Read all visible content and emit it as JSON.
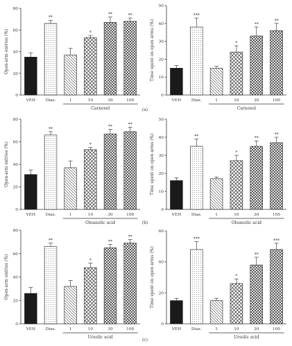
{
  "panel_labels": [
    "(a)",
    "(b)",
    "(c)"
  ],
  "chart_data": [
    {
      "type": "bar",
      "panel": "a",
      "position": "left",
      "categories": [
        "VEH",
        "Diaz.",
        "1",
        "10",
        "30",
        "100"
      ],
      "values": [
        35,
        66,
        37,
        53,
        67,
        68
      ],
      "errors": [
        4,
        3,
        6,
        2,
        5,
        3
      ],
      "significance": [
        "",
        "**",
        "",
        "*",
        "**",
        "**"
      ],
      "ylabel": "Open-arm entries (%)",
      "group_label": "Carnosol",
      "ylim": [
        0,
        80
      ],
      "yticks": [
        0,
        20,
        40,
        60,
        80
      ]
    },
    {
      "type": "bar",
      "panel": "a",
      "position": "right",
      "categories": [
        "VEH",
        "Diaz.",
        "1",
        "10",
        "30",
        "100"
      ],
      "values": [
        15,
        38,
        15,
        24,
        33,
        36
      ],
      "errors": [
        1.5,
        5,
        1,
        3.5,
        5,
        4
      ],
      "significance": [
        "",
        "***",
        "",
        "*",
        "**",
        "**"
      ],
      "ylabel": "Time spent on open arms (%)",
      "group_label": "Carnosol",
      "ylim": [
        0,
        50
      ],
      "yticks": [
        0,
        10,
        20,
        30,
        40,
        50
      ]
    },
    {
      "type": "bar",
      "panel": "b",
      "position": "left",
      "categories": [
        "VEH",
        "Diaz.",
        "1",
        "10",
        "30",
        "100"
      ],
      "values": [
        31,
        66,
        37,
        53,
        67,
        69
      ],
      "errors": [
        4,
        3,
        6,
        2,
        4,
        4
      ],
      "significance": [
        "",
        "**",
        "",
        "*",
        "**",
        "**"
      ],
      "ylabel": "Open-arm entries (%)",
      "group_label": "Oleanolic acid",
      "ylim": [
        0,
        80
      ],
      "yticks": [
        0,
        20,
        40,
        60,
        80
      ]
    },
    {
      "type": "bar",
      "panel": "b",
      "position": "right",
      "categories": [
        "VEH",
        "Diaz.",
        "1",
        "10",
        "30",
        "100"
      ],
      "values": [
        16,
        35,
        17,
        27,
        35,
        37
      ],
      "errors": [
        1.5,
        4,
        1,
        3,
        3,
        3
      ],
      "significance": [
        "",
        "**",
        "",
        "*",
        "**",
        "**"
      ],
      "ylabel": "Time spent on open arms (%)",
      "group_label": "Oleanolic acid",
      "ylim": [
        0,
        50
      ],
      "yticks": [
        0,
        10,
        20,
        30,
        40,
        50
      ]
    },
    {
      "type": "bar",
      "panel": "c",
      "position": "left",
      "categories": [
        "VEH",
        "Diaz.",
        "1",
        "10",
        "30",
        "100"
      ],
      "values": [
        26,
        66,
        32,
        48,
        65,
        69
      ],
      "errors": [
        5,
        3,
        5,
        4,
        3,
        3
      ],
      "significance": [
        "",
        "**",
        "",
        "*",
        "**",
        "**"
      ],
      "ylabel": "Open-arm entries (%)",
      "group_label": "Ursolic acid",
      "ylim": [
        0,
        80
      ],
      "yticks": [
        0,
        20,
        40,
        60,
        80
      ]
    },
    {
      "type": "bar",
      "panel": "c",
      "position": "right",
      "categories": [
        "VEH",
        "Diaz.",
        "1",
        "10",
        "30",
        "100"
      ],
      "values": [
        15,
        48,
        15,
        26,
        38,
        48
      ],
      "errors": [
        1.5,
        5,
        1.5,
        3,
        5,
        4
      ],
      "significance": [
        "",
        "***",
        "",
        "*",
        "**",
        "***"
      ],
      "ylabel": "Time spent on open arms (%)",
      "group_label": "Ursolic acid",
      "ylim": [
        0,
        60
      ],
      "yticks": [
        0,
        20,
        40,
        60
      ]
    }
  ]
}
